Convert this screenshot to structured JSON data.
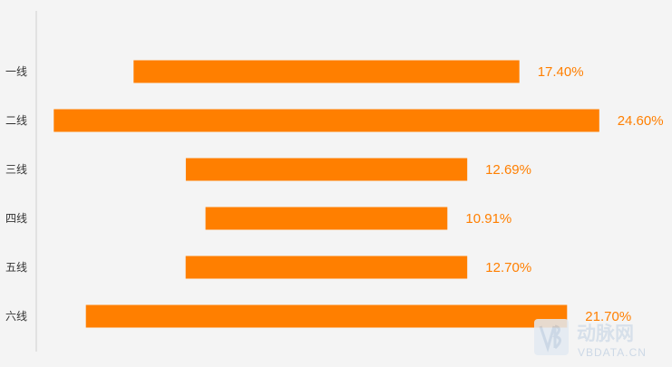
{
  "chart_data": {
    "type": "bar",
    "orientation": "horizontal",
    "layout": "centered",
    "categories": [
      "一线",
      "二线",
      "三线",
      "四线",
      "五线",
      "六线"
    ],
    "values": [
      17.4,
      24.6,
      12.69,
      10.91,
      12.7,
      21.7
    ],
    "value_labels": [
      "17.40%",
      "24.60%",
      "12.69%",
      "10.91%",
      "12.70%",
      "21.70%"
    ],
    "unit": "%",
    "title": "",
    "xlabel": "",
    "ylabel": "",
    "xlim": [
      0,
      25
    ],
    "grid": false,
    "legend": "none",
    "colors": {
      "bar": "#ff7f00",
      "label": "#ff7f00",
      "axis": "#d0d0d0",
      "text": "#333333",
      "background": "#f4f4f4"
    }
  },
  "watermark": {
    "logo_text": "动脉网",
    "url_text": "VBDATA.CN"
  }
}
